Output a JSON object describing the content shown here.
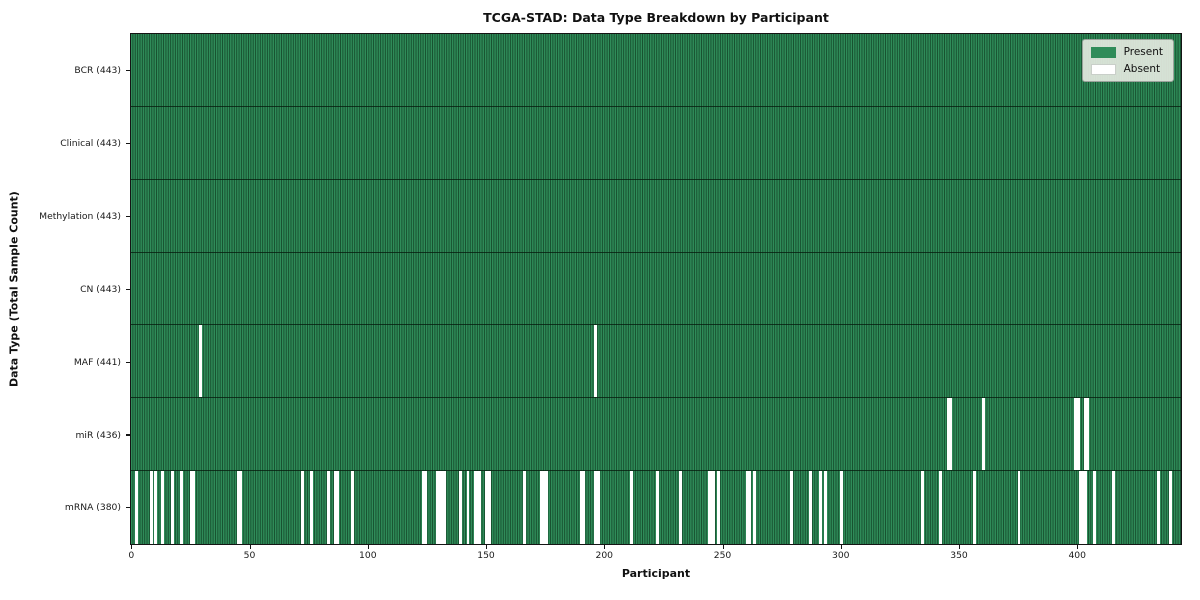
{
  "chart_data": {
    "type": "heatmap",
    "title": "TCGA-STAD: Data Type Breakdown by Participant",
    "xlabel": "Participant",
    "ylabel": "Data Type (Total Sample Count)",
    "x_ticks": [
      0,
      50,
      100,
      150,
      200,
      250,
      300,
      350,
      400
    ],
    "x_range": [
      0,
      443
    ],
    "total_participants": 443,
    "grid": false,
    "legend_position": "upper right",
    "legend": [
      {
        "label": "Present",
        "color": "#2e8b57"
      },
      {
        "label": "Absent",
        "color": "#ffffff"
      }
    ],
    "colors": {
      "present": "#2f8c59",
      "present_edge": "#17502f",
      "absent": "#ffffff"
    },
    "rows": [
      {
        "name": "BCR",
        "label": "BCR (443)",
        "present_count": 443,
        "absent_count": 0,
        "absent_participants": []
      },
      {
        "name": "Clinical",
        "label": "Clinical (443)",
        "present_count": 443,
        "absent_count": 0,
        "absent_participants": []
      },
      {
        "name": "Methylation",
        "label": "Methylation (443)",
        "present_count": 443,
        "absent_count": 0,
        "absent_participants": []
      },
      {
        "name": "CN",
        "label": "CN (443)",
        "present_count": 443,
        "absent_count": 0,
        "absent_participants": []
      },
      {
        "name": "MAF",
        "label": "MAF (441)",
        "present_count": 441,
        "absent_count": 2,
        "absent_participants": [
          29,
          196
        ]
      },
      {
        "name": "miR",
        "label": "miR (436)",
        "present_count": 436,
        "absent_count": 7,
        "absent_participants": [
          345,
          346,
          360,
          399,
          400,
          403,
          404
        ]
      },
      {
        "name": "mRNA",
        "label": "mRNA (380)",
        "present_count": 380,
        "absent_count": 63,
        "absent_participants": [
          2,
          8,
          10,
          13,
          17,
          21,
          25,
          26,
          45,
          46,
          72,
          76,
          83,
          86,
          87,
          93,
          123,
          124,
          129,
          130,
          131,
          132,
          139,
          142,
          145,
          146,
          147,
          150,
          151,
          166,
          173,
          174,
          175,
          190,
          191,
          196,
          197,
          211,
          222,
          232,
          244,
          245,
          246,
          248,
          260,
          261,
          263,
          279,
          287,
          291,
          293,
          300,
          334,
          342,
          356,
          375,
          401,
          402,
          403,
          407,
          415,
          434,
          439
        ]
      }
    ]
  }
}
